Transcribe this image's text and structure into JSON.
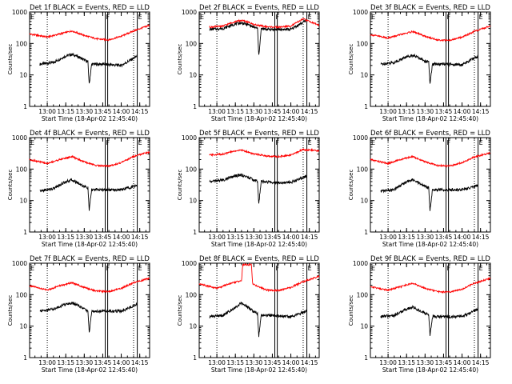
{
  "figure_title": "",
  "colors": {
    "events": "#000000",
    "lld": "#ff0000",
    "axes": "#000000"
  },
  "common": {
    "xlabel": "Start Time (18-Apr-02 12:45:40)",
    "ylabel": "Counts/sec",
    "x_tick_labels": [
      "13:00",
      "13:15",
      "13:30",
      "13:45",
      "14:00",
      "14:15"
    ],
    "y_tick_labels": [
      "1",
      "10",
      "100",
      "1000"
    ],
    "markers": [
      {
        "label": "E",
        "time": "12:45:40",
        "style": "solid"
      },
      {
        "label": "",
        "time": "13:00",
        "style": "dotted"
      },
      {
        "label": "F",
        "time": "13:47",
        "style": "solid"
      },
      {
        "label": "",
        "time": "13:49",
        "style": "solid"
      },
      {
        "label": "",
        "time": "14:10",
        "style": "dotted"
      },
      {
        "label": "E",
        "time": "14:13",
        "style": "solid"
      }
    ]
  },
  "chart_data": [
    {
      "type": "line",
      "title": "Det 1f BLACK = Events, RED = LLD",
      "xlabel": "Start Time (18-Apr-02 12:45:40)",
      "ylabel": "Counts/sec",
      "xlim": [
        "12:45:40",
        "14:23"
      ],
      "ylim": [
        1,
        1000
      ],
      "y_scale": "log",
      "grid": false,
      "series": [
        {
          "name": "Events",
          "color": "#000000",
          "x": [
            "12:54",
            "13:05",
            "13:15",
            "13:20",
            "13:25",
            "13:30",
            "13:33",
            "13:34",
            "13:36",
            "13:45",
            "14:00",
            "14:13"
          ],
          "y": [
            22,
            25,
            40,
            45,
            38,
            30,
            26,
            5,
            22,
            22,
            20,
            40
          ]
        },
        {
          "name": "LLD",
          "color": "#ff0000",
          "x": [
            "12:45:40",
            "13:00",
            "13:10",
            "13:20",
            "13:30",
            "13:40",
            "13:50",
            "14:00",
            "14:10",
            "14:23"
          ],
          "y": [
            200,
            160,
            200,
            250,
            180,
            140,
            130,
            170,
            250,
            380
          ]
        }
      ]
    },
    {
      "type": "line",
      "title": "Det 2f BLACK = Events, RED = LLD",
      "xlabel": "Start Time (18-Apr-02 12:45:40)",
      "ylabel": "Counts/sec",
      "xlim": [
        "12:45:40",
        "14:23"
      ],
      "ylim": [
        1,
        1000
      ],
      "y_scale": "log",
      "grid": false,
      "series": [
        {
          "name": "Events",
          "color": "#000000",
          "x": [
            "12:54",
            "13:05",
            "13:15",
            "13:20",
            "13:25",
            "13:30",
            "13:33",
            "13:34",
            "13:36",
            "13:45",
            "14:00",
            "14:13"
          ],
          "y": [
            280,
            300,
            420,
            450,
            400,
            330,
            300,
            40,
            290,
            280,
            280,
            550
          ]
        },
        {
          "name": "LLD",
          "color": "#ff0000",
          "x": [
            "12:54",
            "13:05",
            "13:15",
            "13:20",
            "13:25",
            "13:30",
            "13:40",
            "13:50",
            "14:00",
            "14:10",
            "14:23"
          ],
          "y": [
            330,
            360,
            500,
            540,
            480,
            400,
            340,
            330,
            360,
            600,
            380
          ]
        }
      ]
    },
    {
      "type": "line",
      "title": "Det 3f BLACK = Events, RED = LLD",
      "xlabel": "Start Time (18-Apr-02 12:45:40)",
      "ylabel": "Counts/sec",
      "xlim": [
        "12:45:40",
        "14:23"
      ],
      "ylim": [
        1,
        1000
      ],
      "y_scale": "log",
      "grid": false,
      "series": [
        {
          "name": "Events",
          "color": "#000000",
          "x": [
            "12:54",
            "13:05",
            "13:15",
            "13:20",
            "13:25",
            "13:30",
            "13:33",
            "13:34",
            "13:36",
            "13:45",
            "14:00",
            "14:13"
          ],
          "y": [
            22,
            25,
            38,
            42,
            35,
            28,
            25,
            5,
            22,
            22,
            21,
            40
          ]
        },
        {
          "name": "LLD",
          "color": "#ff0000",
          "x": [
            "12:45:40",
            "13:00",
            "13:10",
            "13:20",
            "13:30",
            "13:40",
            "13:50",
            "14:00",
            "14:10",
            "14:23"
          ],
          "y": [
            190,
            150,
            190,
            240,
            170,
            130,
            125,
            160,
            240,
            360
          ]
        }
      ]
    },
    {
      "type": "line",
      "title": "Det 4f BLACK = Events, RED = LLD",
      "xlabel": "Start Time (18-Apr-02 12:45:40)",
      "ylabel": "Counts/sec",
      "xlim": [
        "12:45:40",
        "14:23"
      ],
      "ylim": [
        1,
        1000
      ],
      "y_scale": "log",
      "grid": false,
      "series": [
        {
          "name": "Events",
          "color": "#000000",
          "x": [
            "12:54",
            "13:05",
            "13:15",
            "13:20",
            "13:25",
            "13:30",
            "13:33",
            "13:34",
            "13:36",
            "13:45",
            "14:00",
            "14:13"
          ],
          "y": [
            20,
            24,
            40,
            45,
            36,
            28,
            25,
            5,
            22,
            22,
            22,
            30
          ]
        },
        {
          "name": "LLD",
          "color": "#ff0000",
          "x": [
            "12:45:40",
            "13:00",
            "13:10",
            "13:20",
            "13:30",
            "13:40",
            "13:50",
            "14:00",
            "14:10",
            "14:23"
          ],
          "y": [
            200,
            150,
            200,
            250,
            170,
            130,
            125,
            160,
            250,
            350
          ]
        }
      ]
    },
    {
      "type": "line",
      "title": "Det 5f BLACK = Events, RED = LLD",
      "xlabel": "Start Time (18-Apr-02 12:45:40)",
      "ylabel": "Counts/sec",
      "xlim": [
        "12:45:40",
        "14:23"
      ],
      "ylim": [
        1,
        1000
      ],
      "y_scale": "log",
      "grid": false,
      "series": [
        {
          "name": "Events",
          "color": "#000000",
          "x": [
            "12:54",
            "13:05",
            "13:15",
            "13:20",
            "13:25",
            "13:30",
            "13:33",
            "13:34",
            "13:36",
            "13:45",
            "14:00",
            "14:13"
          ],
          "y": [
            40,
            45,
            60,
            65,
            55,
            45,
            40,
            8,
            40,
            38,
            38,
            60
          ]
        },
        {
          "name": "LLD",
          "color": "#ff0000",
          "x": [
            "12:54",
            "13:05",
            "13:15",
            "13:20",
            "13:25",
            "13:30",
            "13:40",
            "13:50",
            "14:00",
            "14:10",
            "14:23"
          ],
          "y": [
            280,
            300,
            380,
            400,
            350,
            300,
            260,
            250,
            280,
            420,
            380
          ]
        }
      ]
    },
    {
      "type": "line",
      "title": "Det 6f BLACK = Events, RED = LLD",
      "xlabel": "Start Time (18-Apr-02 12:45:40)",
      "ylabel": "Counts/sec",
      "xlim": [
        "12:45:40",
        "14:23"
      ],
      "ylim": [
        1,
        1000
      ],
      "y_scale": "log",
      "grid": false,
      "series": [
        {
          "name": "Events",
          "color": "#000000",
          "x": [
            "12:54",
            "13:05",
            "13:15",
            "13:20",
            "13:25",
            "13:30",
            "13:33",
            "13:34",
            "13:36",
            "13:45",
            "14:00",
            "14:13"
          ],
          "y": [
            20,
            22,
            40,
            45,
            36,
            28,
            25,
            5,
            22,
            22,
            22,
            30
          ]
        },
        {
          "name": "LLD",
          "color": "#ff0000",
          "x": [
            "12:45:40",
            "13:00",
            "13:10",
            "13:20",
            "13:30",
            "13:40",
            "13:50",
            "14:00",
            "14:10",
            "14:23"
          ],
          "y": [
            200,
            150,
            200,
            250,
            170,
            130,
            125,
            160,
            240,
            330
          ]
        }
      ]
    },
    {
      "type": "line",
      "title": "Det 7f BLACK = Events, RED = LLD",
      "xlabel": "Start Time (18-Apr-02 12:45:40)",
      "ylabel": "Counts/sec",
      "xlim": [
        "12:45:40",
        "14:23"
      ],
      "ylim": [
        1,
        1000
      ],
      "y_scale": "log",
      "grid": false,
      "series": [
        {
          "name": "Events",
          "color": "#000000",
          "x": [
            "12:54",
            "13:05",
            "13:15",
            "13:20",
            "13:25",
            "13:30",
            "13:33",
            "13:34",
            "13:36",
            "13:45",
            "14:00",
            "14:13"
          ],
          "y": [
            30,
            35,
            50,
            55,
            45,
            35,
            30,
            6,
            30,
            30,
            30,
            50
          ]
        },
        {
          "name": "LLD",
          "color": "#ff0000",
          "x": [
            "12:45:40",
            "13:00",
            "13:10",
            "13:20",
            "13:30",
            "13:40",
            "13:50",
            "14:00",
            "14:10",
            "14:23"
          ],
          "y": [
            190,
            140,
            190,
            240,
            170,
            130,
            125,
            160,
            240,
            330
          ]
        }
      ]
    },
    {
      "type": "line",
      "title": "Det 8f BLACK = Events, RED = LLD",
      "xlabel": "Start Time (18-Apr-02 12:45:40)",
      "ylabel": "Counts/sec",
      "xlim": [
        "12:45:40",
        "14:23"
      ],
      "ylim": [
        1,
        1000
      ],
      "y_scale": "log",
      "grid": false,
      "series": [
        {
          "name": "Events",
          "color": "#000000",
          "x": [
            "12:54",
            "13:05",
            "13:15",
            "13:20",
            "13:25",
            "13:30",
            "13:33",
            "13:34",
            "13:36",
            "13:45",
            "14:00",
            "14:13"
          ],
          "y": [
            20,
            22,
            40,
            55,
            40,
            28,
            25,
            5,
            22,
            22,
            20,
            30
          ]
        },
        {
          "name": "LLD",
          "color": "#ff0000",
          "x": [
            "12:45:40",
            "13:00",
            "13:10",
            "13:20",
            "13:21",
            "13:28",
            "13:29",
            "13:40",
            "13:50",
            "14:00",
            "14:10",
            "14:23"
          ],
          "y": [
            220,
            160,
            220,
            280,
            900,
            900,
            220,
            140,
            135,
            170,
            260,
            380
          ]
        }
      ]
    },
    {
      "type": "line",
      "title": "Det 9f BLACK = Events, RED = LLD",
      "xlabel": "Start Time (18-Apr-02 12:45:40)",
      "ylabel": "Counts/sec",
      "xlim": [
        "12:45:40",
        "14:23"
      ],
      "ylim": [
        1,
        1000
      ],
      "y_scale": "log",
      "grid": false,
      "series": [
        {
          "name": "Events",
          "color": "#000000",
          "x": [
            "12:54",
            "13:05",
            "13:15",
            "13:20",
            "13:25",
            "13:30",
            "13:33",
            "13:34",
            "13:36",
            "13:45",
            "14:00",
            "14:13"
          ],
          "y": [
            20,
            22,
            35,
            40,
            32,
            26,
            23,
            5,
            20,
            20,
            20,
            35
          ]
        },
        {
          "name": "LLD",
          "color": "#ff0000",
          "x": [
            "12:45:40",
            "13:00",
            "13:10",
            "13:20",
            "13:30",
            "13:40",
            "13:50",
            "14:00",
            "14:10",
            "14:23"
          ],
          "y": [
            180,
            140,
            180,
            230,
            160,
            125,
            120,
            150,
            230,
            330
          ]
        }
      ]
    }
  ]
}
